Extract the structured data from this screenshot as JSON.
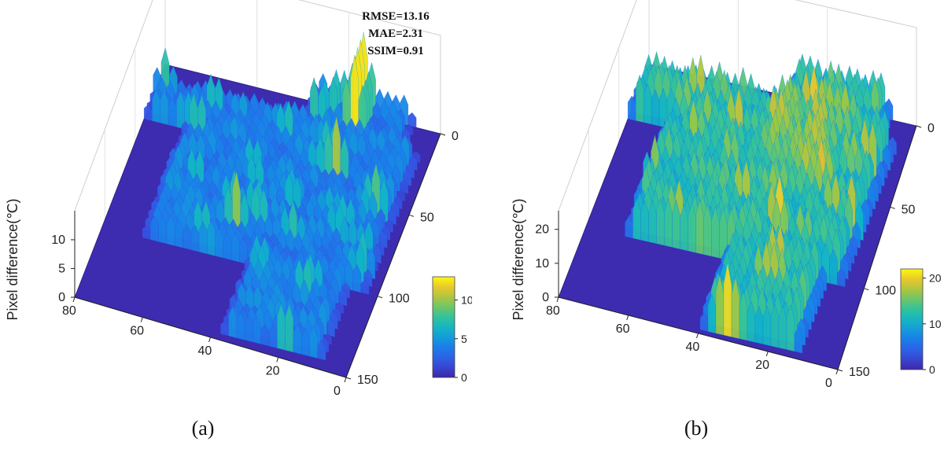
{
  "chart_data": [
    {
      "type": "surface",
      "caption": "(a)",
      "zlabel": "Pixel difference(℃)",
      "x_ticks": [
        "0",
        "50",
        "100",
        "150"
      ],
      "y_ticks": [
        "80",
        "60",
        "40",
        "20",
        "0"
      ],
      "z_ticks": [
        "0",
        "5",
        "10"
      ],
      "colorbar": {
        "range": [
          0,
          13
        ],
        "ticks": [
          "0",
          "5",
          "10"
        ]
      },
      "metrics": [
        "RMSE=13.16",
        "MAE=2.31",
        "SSIM=0.91"
      ],
      "zlim": [
        0,
        13
      ],
      "colormap": "parula",
      "approx_mean_difference": 3.5,
      "approx_max_difference": 13,
      "x_range": [
        0,
        150
      ],
      "y_range": [
        0,
        80
      ]
    },
    {
      "type": "surface",
      "caption": "(b)",
      "zlabel": "Pixel difference(℃)",
      "x_ticks": [
        "0",
        "50",
        "100",
        "150"
      ],
      "y_ticks": [
        "80",
        "60",
        "40",
        "20",
        "0"
      ],
      "z_ticks": [
        "0",
        "10",
        "20"
      ],
      "colorbar": {
        "range": [
          0,
          22
        ],
        "ticks": [
          "0",
          "10",
          "20"
        ]
      },
      "metrics": [],
      "zlim": [
        0,
        22
      ],
      "colormap": "parula",
      "approx_mean_difference": 10,
      "approx_max_difference": 22,
      "x_range": [
        0,
        150
      ],
      "y_range": [
        0,
        80
      ]
    }
  ]
}
